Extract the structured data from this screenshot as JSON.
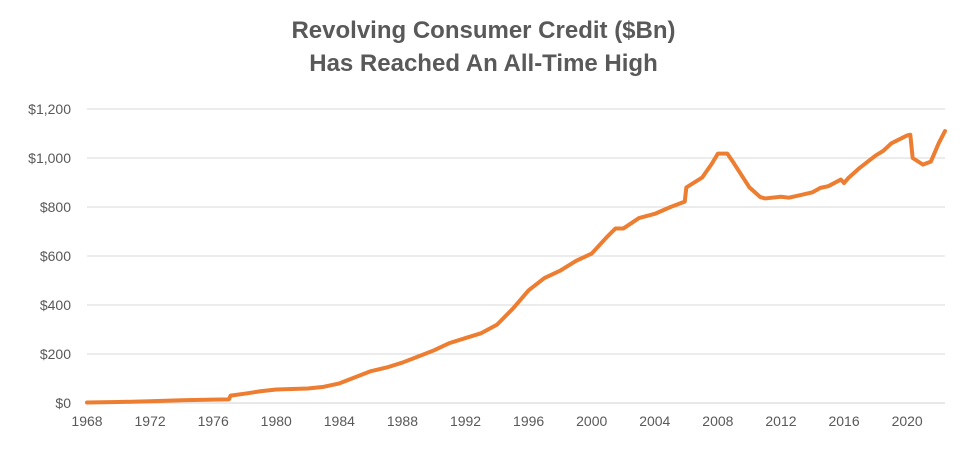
{
  "chart_data": {
    "type": "line",
    "title_line1": "Revolving Consumer Credit ($Bn)",
    "title_line2": "Has Reached An All-Time High",
    "xlabel": "",
    "ylabel": "",
    "xlim": [
      1968,
      2022.4
    ],
    "ylim": [
      0,
      1200
    ],
    "x_ticks": [
      1968,
      1972,
      1976,
      1980,
      1984,
      1988,
      1992,
      1996,
      2000,
      2004,
      2008,
      2012,
      2016,
      2020
    ],
    "y_ticks": [
      0,
      200,
      400,
      600,
      800,
      1000,
      1200
    ],
    "x_tick_labels": [
      "1968",
      "1972",
      "1976",
      "1980",
      "1984",
      "1988",
      "1992",
      "1996",
      "2000",
      "2004",
      "2008",
      "2012",
      "2016",
      "2020"
    ],
    "y_tick_labels": [
      "$0",
      "$200",
      "$400",
      "$600",
      "$800",
      "$1,000",
      "$1,200"
    ],
    "grid": "horizontal",
    "line_color": "#ED7D31",
    "grid_color": "#D9D9D9",
    "series": [
      {
        "values": [
          [
            1968,
            2
          ],
          [
            1970,
            4
          ],
          [
            1972,
            7
          ],
          [
            1974,
            11
          ],
          [
            1976,
            14
          ],
          [
            1977.0,
            15
          ],
          [
            1977.1,
            30
          ],
          [
            1978,
            38
          ],
          [
            1979,
            48
          ],
          [
            1980,
            55
          ],
          [
            1981,
            57
          ],
          [
            1982,
            59
          ],
          [
            1983,
            66
          ],
          [
            1984,
            80
          ],
          [
            1985,
            105
          ],
          [
            1986,
            130
          ],
          [
            1987,
            145
          ],
          [
            1988,
            165
          ],
          [
            1989,
            190
          ],
          [
            1990,
            215
          ],
          [
            1991,
            245
          ],
          [
            1992,
            265
          ],
          [
            1993,
            285
          ],
          [
            1994,
            320
          ],
          [
            1995,
            385
          ],
          [
            1996,
            460
          ],
          [
            1997,
            510
          ],
          [
            1998,
            540
          ],
          [
            1999,
            580
          ],
          [
            2000,
            610
          ],
          [
            2001,
            680
          ],
          [
            2001.5,
            712
          ],
          [
            2002,
            712
          ],
          [
            2003,
            755
          ],
          [
            2004,
            772
          ],
          [
            2005,
            800
          ],
          [
            2005.9,
            822
          ],
          [
            2006.0,
            880
          ],
          [
            2007,
            920
          ],
          [
            2007.6,
            975
          ],
          [
            2008.0,
            1018
          ],
          [
            2008.6,
            1018
          ],
          [
            2009,
            980
          ],
          [
            2010,
            880
          ],
          [
            2010.7,
            840
          ],
          [
            2011,
            835
          ],
          [
            2012,
            842
          ],
          [
            2012.5,
            838
          ],
          [
            2013,
            845
          ],
          [
            2014,
            860
          ],
          [
            2014.5,
            878
          ],
          [
            2015,
            885
          ],
          [
            2015.8,
            912
          ],
          [
            2016.0,
            898
          ],
          [
            2016.3,
            920
          ],
          [
            2017,
            960
          ],
          [
            2018,
            1010
          ],
          [
            2018.5,
            1030
          ],
          [
            2019,
            1060
          ],
          [
            2020.0,
            1092
          ],
          [
            2020.2,
            1095
          ],
          [
            2020.35,
            1000
          ],
          [
            2021.0,
            973
          ],
          [
            2021.5,
            985
          ],
          [
            2022.0,
            1060
          ],
          [
            2022.4,
            1110
          ]
        ]
      }
    ]
  }
}
